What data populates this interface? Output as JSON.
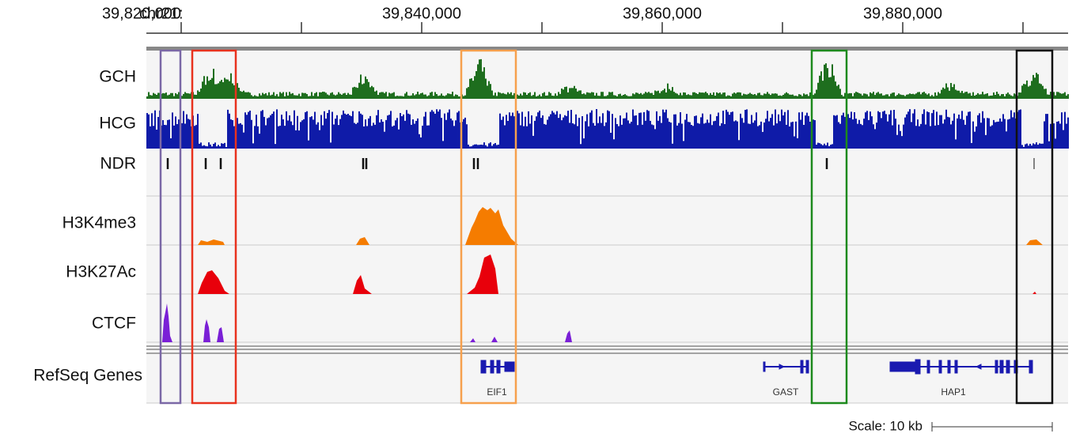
{
  "ruler": {
    "chrom": "chr21:",
    "ticks": [
      {
        "value": 39820000,
        "label": "39,820,000"
      },
      {
        "value": 39840000,
        "label": "39,840,000"
      },
      {
        "value": 39860000,
        "label": "39,860,000"
      },
      {
        "value": 39880000,
        "label": "39,880,000"
      }
    ]
  },
  "tracks": [
    {
      "label": "GCH"
    },
    {
      "label": "HCG"
    },
    {
      "label": "NDR"
    },
    {
      "label": "H3K4me3"
    },
    {
      "label": "H3K27Ac"
    },
    {
      "label": "CTCF"
    },
    {
      "label": "RefSeq Genes"
    }
  ],
  "genes": [
    {
      "name": "EIF1"
    },
    {
      "name": "GAST"
    },
    {
      "name": "HAP1"
    }
  ],
  "scale": "Scale: 10 kb"
}
